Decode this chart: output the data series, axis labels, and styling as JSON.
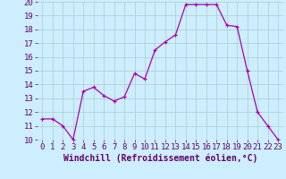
{
  "x": [
    0,
    1,
    2,
    3,
    4,
    5,
    6,
    7,
    8,
    9,
    10,
    11,
    12,
    13,
    14,
    15,
    16,
    17,
    18,
    19,
    20,
    21,
    22,
    23
  ],
  "y": [
    11.5,
    11.5,
    11.0,
    10.0,
    13.5,
    13.8,
    13.2,
    12.8,
    13.1,
    14.8,
    14.4,
    16.5,
    17.1,
    17.6,
    19.8,
    19.8,
    19.8,
    19.8,
    18.3,
    18.2,
    15.0,
    12.0,
    11.0,
    10.0
  ],
  "line_color": "#aa00aa",
  "marker_color": "#aa00aa",
  "bg_color": "#cceeff",
  "grid_color": "#aacccc",
  "xlabel": "Windchill (Refroidissement éolien,°C)",
  "ylim": [
    10,
    20
  ],
  "xlim": [
    -0.5,
    23.5
  ],
  "yticks": [
    10,
    11,
    12,
    13,
    14,
    15,
    16,
    17,
    18,
    19,
    20
  ],
  "xticks": [
    0,
    1,
    2,
    3,
    4,
    5,
    6,
    7,
    8,
    9,
    10,
    11,
    12,
    13,
    14,
    15,
    16,
    17,
    18,
    19,
    20,
    21,
    22,
    23
  ],
  "tick_label_fontsize": 6.5,
  "xlabel_fontsize": 7,
  "label_color": "#660066"
}
